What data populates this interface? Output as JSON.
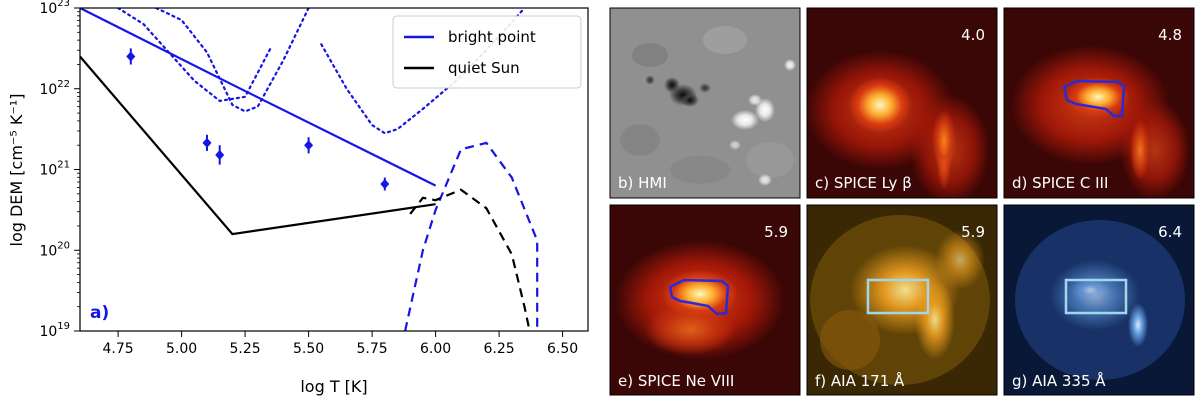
{
  "colors": {
    "bright_point": "#1515e6",
    "quiet_sun": "#000000",
    "contour": "#2a2ad8",
    "aia_box": "#9fd8ec"
  },
  "chart_data": {
    "type": "line",
    "xlabel": "log T [K]",
    "ylabel": "log DEM [cm⁻⁵ K⁻¹]",
    "xlim": [
      4.6,
      6.6
    ],
    "ylim_log10": [
      19,
      23
    ],
    "yscale": "log",
    "x_ticks": [
      "4.75",
      "5.00",
      "5.25",
      "5.50",
      "5.75",
      "6.00",
      "6.25",
      "6.50"
    ],
    "y_ticks": [
      {
        "base": "10",
        "exp": "19"
      },
      {
        "base": "10",
        "exp": "20"
      },
      {
        "base": "10",
        "exp": "21"
      },
      {
        "base": "10",
        "exp": "22"
      },
      {
        "base": "10",
        "exp": "23"
      }
    ],
    "panel_label": "a)",
    "legend": [
      "bright point",
      "quiet Sun"
    ],
    "series": [
      {
        "name": "bright point",
        "style": "solid",
        "color_key": "bright_point",
        "x": [
          4.6,
          5.2,
          6.0
        ],
        "log_y": [
          23.0,
          22.05,
          20.8
        ]
      },
      {
        "name": "quiet Sun",
        "style": "solid",
        "color_key": "quiet_sun",
        "x": [
          4.6,
          5.2,
          6.0
        ],
        "log_y": [
          22.4,
          20.2,
          20.57
        ]
      }
    ],
    "points": [
      {
        "x": 4.8,
        "log_y": 22.4,
        "err": 0.1
      },
      {
        "x": 5.1,
        "log_y": 21.33,
        "err": 0.1
      },
      {
        "x": 5.15,
        "log_y": 21.18,
        "err": 0.12
      },
      {
        "x": 5.5,
        "log_y": 21.3,
        "err": 0.1
      },
      {
        "x": 5.8,
        "log_y": 20.82,
        "err": 0.08
      }
    ],
    "dashed_curves": [
      {
        "color_key": "bright_point",
        "x": [
          5.88,
          5.95,
          6.0,
          6.1,
          6.2,
          6.3,
          6.4,
          6.4
        ],
        "log_y": [
          19.0,
          20.0,
          20.5,
          21.25,
          21.33,
          20.9,
          20.12,
          19.0
        ]
      },
      {
        "color_key": "quiet_sun",
        "x": [
          5.9,
          5.95,
          6.0,
          6.1,
          6.2,
          6.3,
          6.35,
          6.37
        ],
        "log_y": [
          20.45,
          20.65,
          20.62,
          20.75,
          20.52,
          19.95,
          19.3,
          19.0
        ]
      }
    ],
    "dotted_curves": [
      {
        "x": [
          4.9,
          5.0,
          5.1,
          5.2,
          5.25,
          5.3,
          5.4,
          5.5
        ],
        "log_y": [
          23.0,
          22.85,
          22.45,
          21.8,
          21.72,
          21.78,
          22.35,
          23.0
        ]
      },
      {
        "x": [
          4.75,
          4.85,
          4.95,
          5.05,
          5.15,
          5.25,
          5.35
        ],
        "log_y": [
          23.0,
          22.8,
          22.45,
          22.1,
          21.85,
          21.9,
          22.5
        ]
      },
      {
        "x": [
          5.55,
          5.65,
          5.75,
          5.8,
          5.85,
          5.95,
          6.1,
          6.25,
          6.35
        ],
        "log_y": [
          22.55,
          22.0,
          21.55,
          21.45,
          21.5,
          21.75,
          22.15,
          22.65,
          23.0
        ]
      }
    ]
  },
  "panels": [
    {
      "label": "b) HMI",
      "value": ""
    },
    {
      "label": "c) SPICE Ly β",
      "value": "4.0"
    },
    {
      "label": "d) SPICE C III",
      "value": "4.8"
    },
    {
      "label": "e) SPICE Ne VIII",
      "value": "5.9"
    },
    {
      "label": "f) AIA 171 Å",
      "value": "5.9"
    },
    {
      "label": "g) AIA 335 Å",
      "value": "6.4"
    }
  ]
}
